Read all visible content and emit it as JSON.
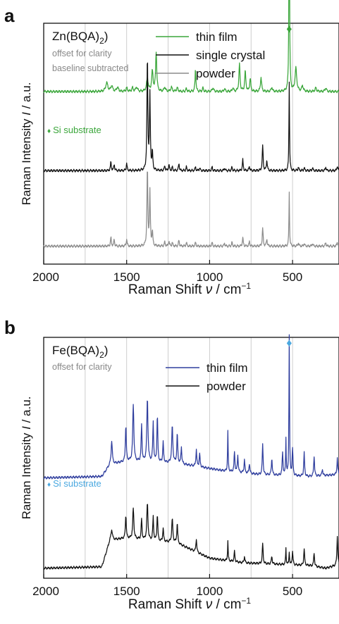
{
  "chart_data": [
    {
      "panel_label": "a",
      "type": "line",
      "compound": "Zn(BQA)",
      "compound_sub": "2",
      "notes": [
        "offset for clarity",
        "baseline subtracted"
      ],
      "xlabel_prefix": "Raman Shift ",
      "xlabel_symbol": "ν",
      "xlabel_suffix": " / cm",
      "xlabel_exp": "−1",
      "ylabel_prefix": "Raman Intensity ",
      "ylabel_symbol": "I",
      "ylabel_suffix": " / a.u.",
      "xlim": [
        2000,
        220
      ],
      "x_reversed": true,
      "xticks": [
        2000,
        1500,
        1000,
        500
      ],
      "xtick_labels": [
        "2000",
        "1500",
        "1000",
        "500"
      ],
      "gridlines_x": [
        1750,
        1500,
        1250,
        1000,
        750,
        500
      ],
      "grid": true,
      "legend_position": "top-center",
      "si_marker": {
        "label": "Si substrate",
        "symbol": "♦",
        "x": 520,
        "series": "thin film"
      },
      "series": [
        {
          "name": "thin film",
          "color": "#3aa63a",
          "offset": 2.1,
          "baseline": 0.05,
          "peaks": [
            [
              1620,
              0.12,
              8
            ],
            [
              1590,
              0.08,
              6
            ],
            [
              1555,
              0.06,
              6
            ],
            [
              1500,
              0.05,
              5
            ],
            [
              1465,
              0.05,
              5
            ],
            [
              1440,
              0.06,
              6
            ],
            [
              1375,
              0.18,
              6
            ],
            [
              1345,
              0.28,
              5
            ],
            [
              1322,
              0.55,
              4
            ],
            [
              1270,
              0.06,
              5
            ],
            [
              1230,
              0.06,
              5
            ],
            [
              1195,
              0.05,
              5
            ],
            [
              1140,
              0.04,
              4
            ],
            [
              1085,
              0.32,
              3
            ],
            [
              1040,
              0.05,
              4
            ],
            [
              980,
              0.05,
              5
            ],
            [
              910,
              0.04,
              4
            ],
            [
              860,
              0.05,
              4
            ],
            [
              820,
              0.38,
              4
            ],
            [
              785,
              0.28,
              4
            ],
            [
              755,
              0.18,
              4
            ],
            [
              690,
              0.2,
              4
            ],
            [
              625,
              0.06,
              4
            ],
            [
              520,
              2.6,
              2.5
            ],
            [
              480,
              0.32,
              6
            ],
            [
              440,
              0.08,
              5
            ],
            [
              360,
              0.05,
              5
            ],
            [
              300,
              0.05,
              5
            ]
          ]
        },
        {
          "name": "single crystal",
          "color": "#111111",
          "offset": 1.05,
          "baseline": 0.0,
          "peaks": [
            [
              1595,
              0.12,
              3
            ],
            [
              1575,
              0.09,
              3
            ],
            [
              1500,
              0.1,
              3
            ],
            [
              1375,
              1.6,
              3
            ],
            [
              1360,
              1.05,
              3
            ],
            [
              1345,
              0.25,
              3
            ],
            [
              1270,
              0.07,
              3
            ],
            [
              1245,
              0.08,
              3
            ],
            [
              1225,
              0.05,
              3
            ],
            [
              1185,
              0.1,
              3
            ],
            [
              1140,
              0.05,
              3
            ],
            [
              1085,
              0.05,
              3
            ],
            [
              1060,
              0.04,
              3
            ],
            [
              985,
              0.05,
              3
            ],
            [
              910,
              0.04,
              3
            ],
            [
              865,
              0.05,
              3
            ],
            [
              800,
              0.15,
              3
            ],
            [
              760,
              0.06,
              3
            ],
            [
              680,
              0.35,
              3
            ],
            [
              655,
              0.15,
              3
            ],
            [
              520,
              1.25,
              2
            ],
            [
              465,
              0.05,
              3
            ],
            [
              430,
              0.04,
              3
            ],
            [
              380,
              0.04,
              3
            ],
            [
              300,
              0.05,
              3
            ],
            [
              230,
              0.07,
              3
            ]
          ]
        },
        {
          "name": "powder",
          "color": "#8c8c8c",
          "offset": 0.0,
          "baseline": 0.0,
          "peaks": [
            [
              1595,
              0.12,
              3
            ],
            [
              1575,
              0.09,
              3
            ],
            [
              1500,
              0.1,
              3
            ],
            [
              1375,
              1.1,
              3
            ],
            [
              1360,
              0.75,
              3
            ],
            [
              1345,
              0.2,
              3
            ],
            [
              1270,
              0.06,
              3
            ],
            [
              1245,
              0.07,
              3
            ],
            [
              1225,
              0.05,
              3
            ],
            [
              1185,
              0.08,
              3
            ],
            [
              1140,
              0.05,
              3
            ],
            [
              1085,
              0.05,
              3
            ],
            [
              985,
              0.05,
              3
            ],
            [
              910,
              0.04,
              3
            ],
            [
              865,
              0.05,
              3
            ],
            [
              800,
              0.12,
              3
            ],
            [
              760,
              0.06,
              3
            ],
            [
              680,
              0.25,
              3
            ],
            [
              655,
              0.1,
              3
            ],
            [
              520,
              0.75,
              2
            ],
            [
              465,
              0.05,
              3
            ],
            [
              430,
              0.04,
              3
            ],
            [
              380,
              0.04,
              3
            ],
            [
              300,
              0.05,
              3
            ],
            [
              230,
              0.06,
              3
            ]
          ]
        }
      ],
      "ylim": [
        -0.25,
        3.1
      ]
    },
    {
      "panel_label": "b",
      "type": "line",
      "compound": "Fe(BQA)",
      "compound_sub": "2",
      "notes": [
        "offset for clarity"
      ],
      "xlabel_prefix": "Raman Shift ",
      "xlabel_symbol": "ν",
      "xlabel_suffix": " / cm",
      "xlabel_exp": "−1",
      "ylabel_prefix": "Raman Intensity ",
      "ylabel_symbol": "I",
      "ylabel_suffix": " / a.u.",
      "xlim": [
        2000,
        220
      ],
      "x_reversed": true,
      "xticks": [
        2000,
        1500,
        1000,
        500
      ],
      "xtick_labels": [
        "2000",
        "1500",
        "1000",
        "500"
      ],
      "gridlines_x": [
        1750,
        1500,
        1250,
        1000,
        750,
        500
      ],
      "grid": true,
      "legend_position": "top-center",
      "si_marker": {
        "label": "Si substrate",
        "symbol": "♦",
        "x": 520,
        "series": "thin film"
      },
      "series": [
        {
          "name": "thin film",
          "color": "#2f3e9e",
          "offset": 1.35,
          "envelope": [
            [
              2000,
              0.0
            ],
            [
              1650,
              0.02
            ],
            [
              1600,
              0.2
            ],
            [
              1500,
              0.25
            ],
            [
              1200,
              0.22
            ],
            [
              900,
              0.1
            ],
            [
              700,
              0.05
            ],
            [
              400,
              0.02
            ],
            [
              220,
              0.05
            ]
          ],
          "peaks": [
            [
              1590,
              0.35,
              4
            ],
            [
              1505,
              0.55,
              3
            ],
            [
              1460,
              0.85,
              4
            ],
            [
              1410,
              0.55,
              3
            ],
            [
              1375,
              0.95,
              4
            ],
            [
              1340,
              0.6,
              3
            ],
            [
              1315,
              0.7,
              3
            ],
            [
              1280,
              0.3,
              3
            ],
            [
              1225,
              0.55,
              4
            ],
            [
              1195,
              0.45,
              3
            ],
            [
              1170,
              0.25,
              3
            ],
            [
              1080,
              0.25,
              3
            ],
            [
              1060,
              0.2,
              3
            ],
            [
              890,
              0.6,
              2
            ],
            [
              850,
              0.3,
              3
            ],
            [
              830,
              0.25,
              3
            ],
            [
              790,
              0.2,
              3
            ],
            [
              760,
              0.15,
              3
            ],
            [
              680,
              0.45,
              3
            ],
            [
              625,
              0.25,
              3
            ],
            [
              560,
              0.35,
              3
            ],
            [
              540,
              0.55,
              2
            ],
            [
              520,
              2.1,
              2
            ],
            [
              500,
              0.4,
              3
            ],
            [
              430,
              0.35,
              3
            ],
            [
              370,
              0.3,
              3
            ],
            [
              320,
              0.1,
              3
            ],
            [
              230,
              0.25,
              3
            ]
          ]
        },
        {
          "name": "powder",
          "color": "#111111",
          "offset": 0.0,
          "envelope": [
            [
              2000,
              0.0
            ],
            [
              1650,
              0.02
            ],
            [
              1600,
              0.42
            ],
            [
              1500,
              0.45
            ],
            [
              1200,
              0.38
            ],
            [
              1000,
              0.15
            ],
            [
              800,
              0.08
            ],
            [
              600,
              0.06
            ],
            [
              400,
              0.04
            ],
            [
              300,
              0.0
            ],
            [
              220,
              0.05
            ]
          ],
          "peaks": [
            [
              1590,
              0.15,
              5
            ],
            [
              1505,
              0.35,
              3
            ],
            [
              1460,
              0.45,
              4
            ],
            [
              1410,
              0.3,
              3
            ],
            [
              1375,
              0.55,
              4
            ],
            [
              1340,
              0.35,
              3
            ],
            [
              1315,
              0.4,
              3
            ],
            [
              1280,
              0.2,
              3
            ],
            [
              1225,
              0.35,
              4
            ],
            [
              1195,
              0.3,
              3
            ],
            [
              1080,
              0.2,
              3
            ],
            [
              890,
              0.3,
              2
            ],
            [
              850,
              0.15,
              3
            ],
            [
              790,
              0.1,
              3
            ],
            [
              680,
              0.3,
              3
            ],
            [
              625,
              0.12,
              3
            ],
            [
              540,
              0.25,
              2
            ],
            [
              520,
              0.2,
              2
            ],
            [
              500,
              0.2,
              3
            ],
            [
              430,
              0.25,
              3
            ],
            [
              370,
              0.2,
              3
            ],
            [
              230,
              0.45,
              3
            ]
          ]
        }
      ],
      "ylim": [
        -0.15,
        3.45
      ]
    }
  ]
}
